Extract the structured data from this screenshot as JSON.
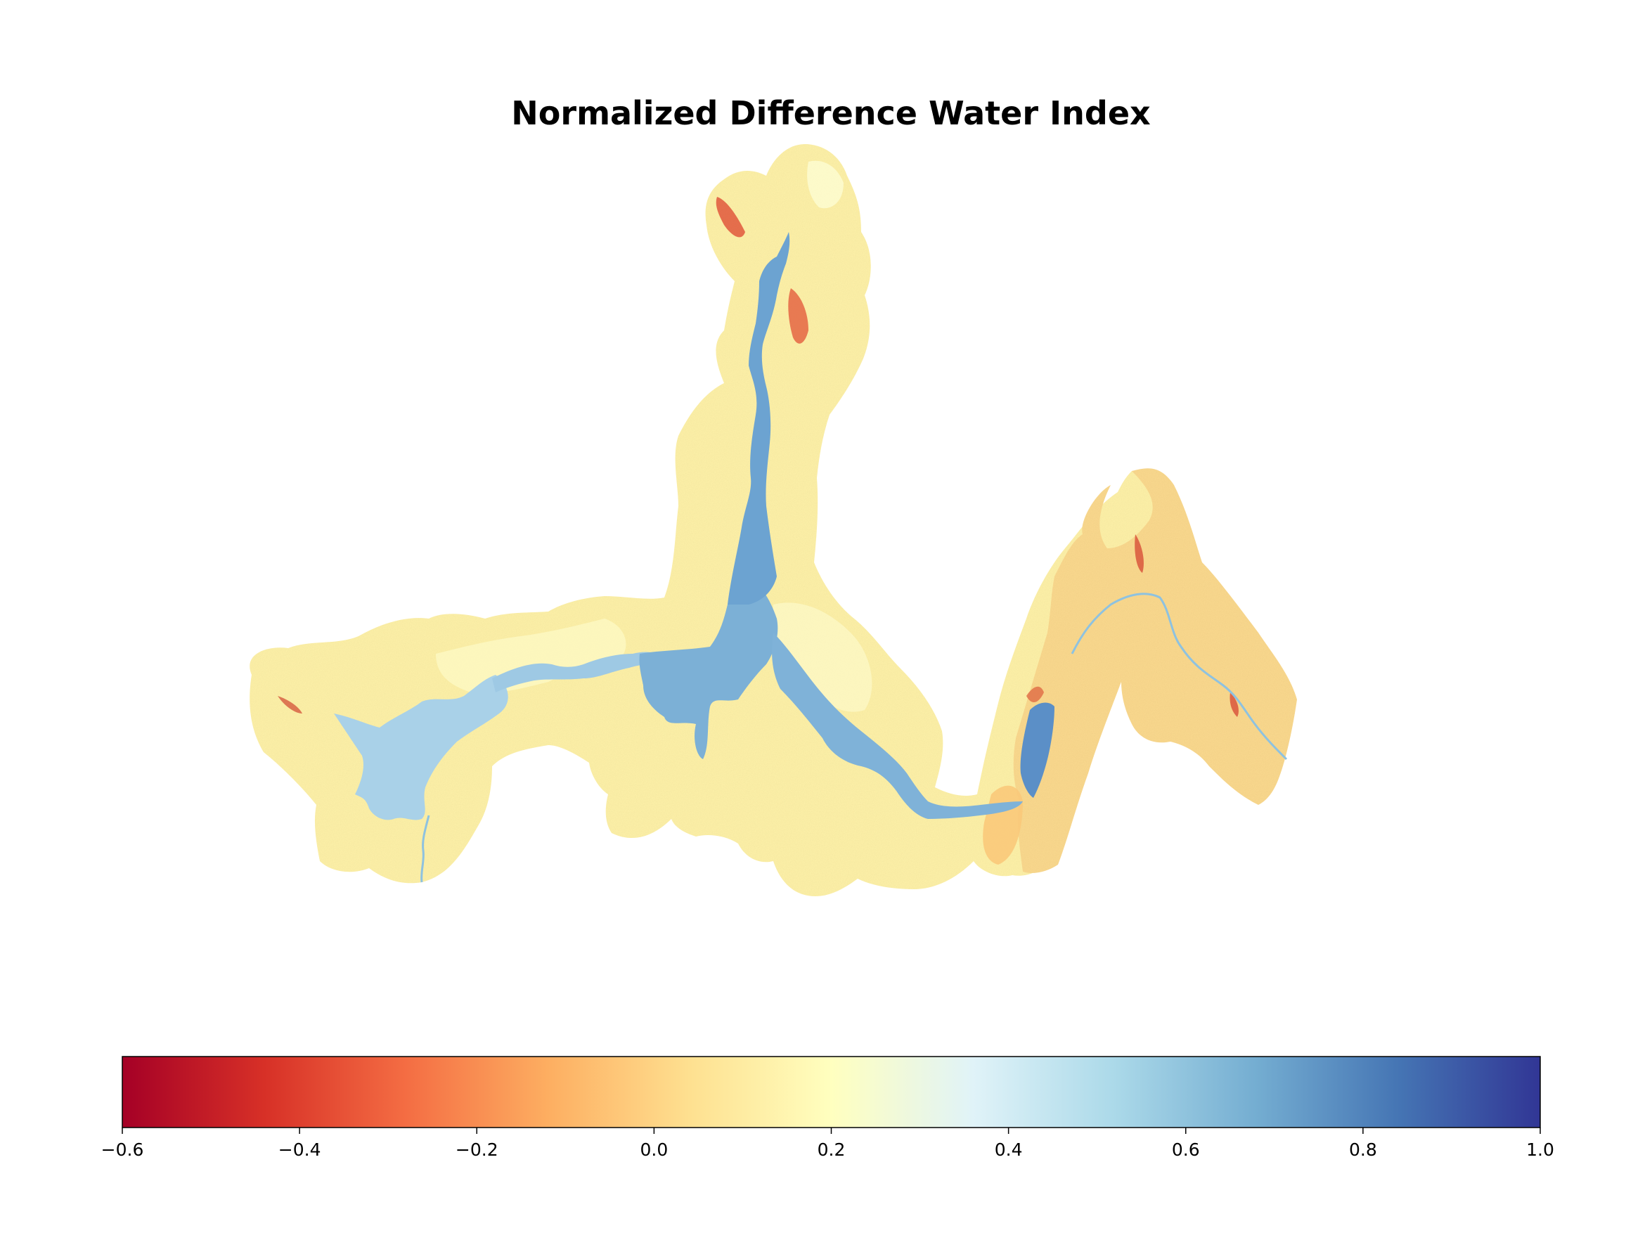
{
  "figure": {
    "title": "Normalized Difference Water Index"
  },
  "map": {
    "type": "raster",
    "colormap": "RdYlBu",
    "colors": {
      "land_high": "#fef3b0",
      "land_mid": "#fde7a0",
      "land_dry": "#f9cf85",
      "bare": "#e2593f",
      "water_light": "#a7cfe6",
      "water_mid": "#79b0d6",
      "water_deep": "#5b8fc7"
    }
  },
  "colorbar": {
    "vmin": -0.6,
    "vmax": 1.0,
    "ticks": [
      "−0.6",
      "−0.4",
      "−0.2",
      "0.0",
      "0.2",
      "0.4",
      "0.6",
      "0.8",
      "1.0"
    ],
    "tick_values": [
      -0.6,
      -0.4,
      -0.2,
      0.0,
      0.2,
      0.4,
      0.6,
      0.8,
      1.0
    ],
    "stops": [
      "#a50026",
      "#d73027",
      "#f46d43",
      "#fdae61",
      "#fee090",
      "#ffffbf",
      "#e0f3f8",
      "#abd9e9",
      "#74add1",
      "#4575b4",
      "#313695"
    ]
  }
}
